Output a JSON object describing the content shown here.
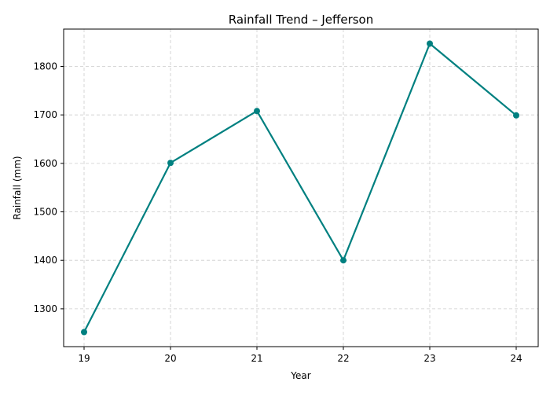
{
  "chart_data": {
    "type": "line",
    "title": "Rainfall Trend – Jefferson",
    "xlabel": "Year",
    "ylabel": "Rainfall (mm)",
    "x": [
      "19",
      "20",
      "21",
      "22",
      "23",
      "24"
    ],
    "series": [
      {
        "values": [
          1252,
          1601,
          1708,
          1400,
          1847,
          1699
        ]
      }
    ],
    "yticks": [
      1300,
      1400,
      1500,
      1600,
      1700,
      1800
    ],
    "ylim": [
      1222,
      1877
    ],
    "grid": true,
    "line_color": "#008080",
    "marker": "circle"
  }
}
